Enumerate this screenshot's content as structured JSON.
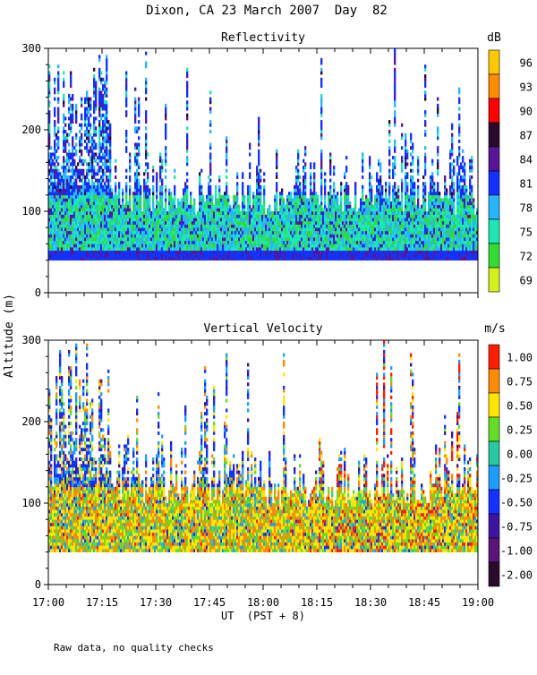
{
  "title": "Dixon, CA 23 March 2007  Day  82",
  "ylabel": "Altitude (m)",
  "xlabel": "UT  (PST + 8)",
  "footnote": "Raw data, no quality checks",
  "chart_data": [
    {
      "type": "heatmap",
      "title": "Reflectivity",
      "ylabel": "Altitude (m)",
      "y_ticks": [
        "0",
        "100",
        "200",
        "300"
      ],
      "ylim": [
        0,
        300
      ],
      "xlim": [
        "17:00",
        "19:00"
      ],
      "x_ticks": [],
      "colorbar": {
        "unit": "dB",
        "labels": [
          "96",
          "93",
          "90",
          "87",
          "84",
          "81",
          "78",
          "75",
          "72",
          "69"
        ],
        "colors": [
          "#ffc800",
          "#ff8c00",
          "#ff0000",
          "#2a0a2a",
          "#5a1496",
          "#1432ff",
          "#28b4ff",
          "#1ee6b4",
          "#32dc32",
          "#d2f01e"
        ]
      },
      "summary": {
        "cloud_base_m": 40,
        "dense_layer_top_m": 110,
        "tops_reach_m": 300,
        "note": "Dense echoes 40-110 m (green/cyan near 75-78 dB, blue 81 dB near base); sparse towers to 300 m, mostly blue/purple"
      }
    },
    {
      "type": "heatmap",
      "title": "Vertical Velocity",
      "ylabel": "Altitude (m)",
      "y_ticks": [
        "0",
        "100",
        "200",
        "300"
      ],
      "ylim": [
        0,
        300
      ],
      "xlim": [
        "17:00",
        "19:00"
      ],
      "x_ticks": [
        "17:00",
        "17:15",
        "17:30",
        "17:45",
        "18:00",
        "18:15",
        "18:30",
        "18:45",
        "19:00"
      ],
      "xlabel": "UT  (PST + 8)",
      "colorbar": {
        "unit": "m/s",
        "labels": [
          "1.00",
          "0.75",
          "0.50",
          "0.25",
          "0.00",
          "-0.25",
          "-0.50",
          "-0.75",
          "-1.00",
          "-2.00"
        ],
        "colors": [
          "#ff1e00",
          "#ff8c00",
          "#ffe600",
          "#64dc28",
          "#28c8a0",
          "#1e9cff",
          "#1432ff",
          "#3c14a0",
          "#5a1478",
          "#2a0a2a"
        ]
      },
      "summary": {
        "cloud_base_m": 40,
        "dense_layer_top_m": 110,
        "tops_reach_m": 300,
        "note": "Mostly yellow/orange/green (0 to +0.75 m/s) near the base; red updrafts late in the period; blue/purple upper towers"
      }
    }
  ]
}
